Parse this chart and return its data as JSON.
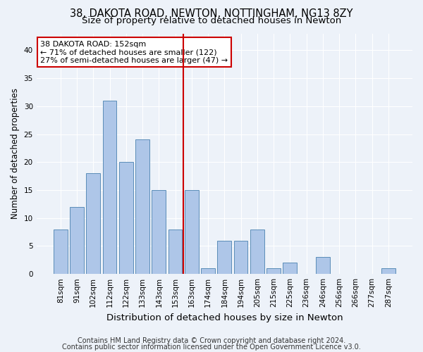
{
  "title1": "38, DAKOTA ROAD, NEWTON, NOTTINGHAM, NG13 8ZY",
  "title2": "Size of property relative to detached houses in Newton",
  "xlabel": "Distribution of detached houses by size in Newton",
  "ylabel": "Number of detached properties",
  "categories": [
    "81sqm",
    "91sqm",
    "102sqm",
    "112sqm",
    "122sqm",
    "133sqm",
    "143sqm",
    "153sqm",
    "163sqm",
    "174sqm",
    "184sqm",
    "194sqm",
    "205sqm",
    "215sqm",
    "225sqm",
    "236sqm",
    "246sqm",
    "256sqm",
    "266sqm",
    "277sqm",
    "287sqm"
  ],
  "values": [
    8,
    12,
    18,
    31,
    20,
    24,
    15,
    8,
    15,
    1,
    6,
    6,
    8,
    1,
    2,
    0,
    3,
    0,
    0,
    0,
    1
  ],
  "bar_color": "#aec6e8",
  "bar_edge_color": "#5b8db8",
  "vline_x": 7.5,
  "vline_color": "#cc0000",
  "annotation_text": "38 DAKOTA ROAD: 152sqm\n← 71% of detached houses are smaller (122)\n27% of semi-detached houses are larger (47) →",
  "annotation_box_color": "#ffffff",
  "annotation_box_edge": "#cc0000",
  "ylim": [
    0,
    43
  ],
  "yticks": [
    0,
    5,
    10,
    15,
    20,
    25,
    30,
    35,
    40
  ],
  "footer1": "Contains HM Land Registry data © Crown copyright and database right 2024.",
  "footer2": "Contains public sector information licensed under the Open Government Licence v3.0.",
  "background_color": "#edf2f9",
  "grid_color": "#ffffff",
  "title1_fontsize": 10.5,
  "title2_fontsize": 9.5,
  "xlabel_fontsize": 9.5,
  "ylabel_fontsize": 8.5,
  "tick_fontsize": 7.5,
  "footer_fontsize": 7.0,
  "ann_fontsize": 8.0
}
